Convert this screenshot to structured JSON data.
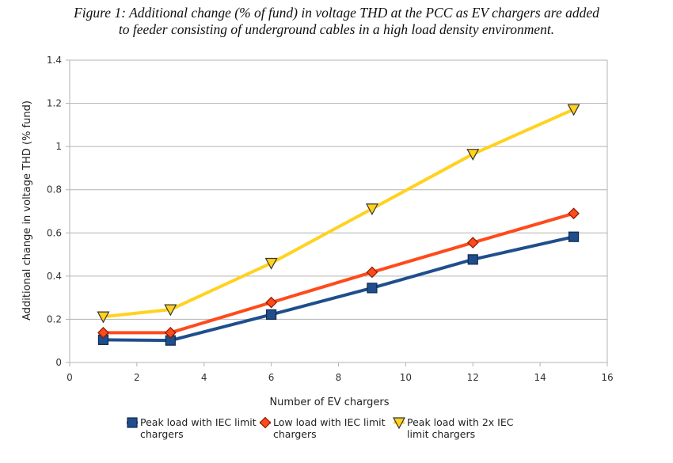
{
  "caption": {
    "line1": "Figure 1: Additional change (% of fund) in voltage THD at the PCC as EV chargers are added",
    "line2": "to feeder consisting of underground cables in a high load density environment."
  },
  "chart_data": {
    "type": "line",
    "xlabel": "Number of EV chargers",
    "ylabel": "Additional change in voltage THD (% fund)",
    "xlim": [
      0,
      16
    ],
    "ylim": [
      0,
      1.4
    ],
    "xticks": [
      0,
      2,
      4,
      6,
      8,
      10,
      12,
      14,
      16
    ],
    "yticks": [
      0,
      0.2,
      0.4,
      0.6,
      0.8,
      1,
      1.2,
      1.4
    ],
    "ytick_labels": [
      "0",
      "0.2",
      "0.4",
      "0.6",
      "0.8",
      "1",
      "1.2",
      "1.4"
    ],
    "grid": "horizontal",
    "legend_position": "bottom",
    "x": [
      1,
      3,
      6,
      9,
      12,
      15
    ],
    "series": [
      {
        "name_lines": [
          "Peak load with IEC limit",
          "chargers"
        ],
        "values": [
          0.105,
          0.102,
          0.222,
          0.345,
          0.477,
          0.582
        ],
        "color": "#1f4e8c",
        "marker": "square"
      },
      {
        "name_lines": [
          "Low load with IEC limit",
          "chargers"
        ],
        "values": [
          0.138,
          0.138,
          0.278,
          0.418,
          0.555,
          0.69
        ],
        "color": "#ff4a1c",
        "marker": "diamond"
      },
      {
        "name_lines": [
          "Peak load with 2x IEC",
          "limit chargers"
        ],
        "values": [
          0.212,
          0.245,
          0.46,
          0.712,
          0.965,
          1.172
        ],
        "color": "#ffd21f",
        "marker": "triangle-down"
      }
    ]
  }
}
